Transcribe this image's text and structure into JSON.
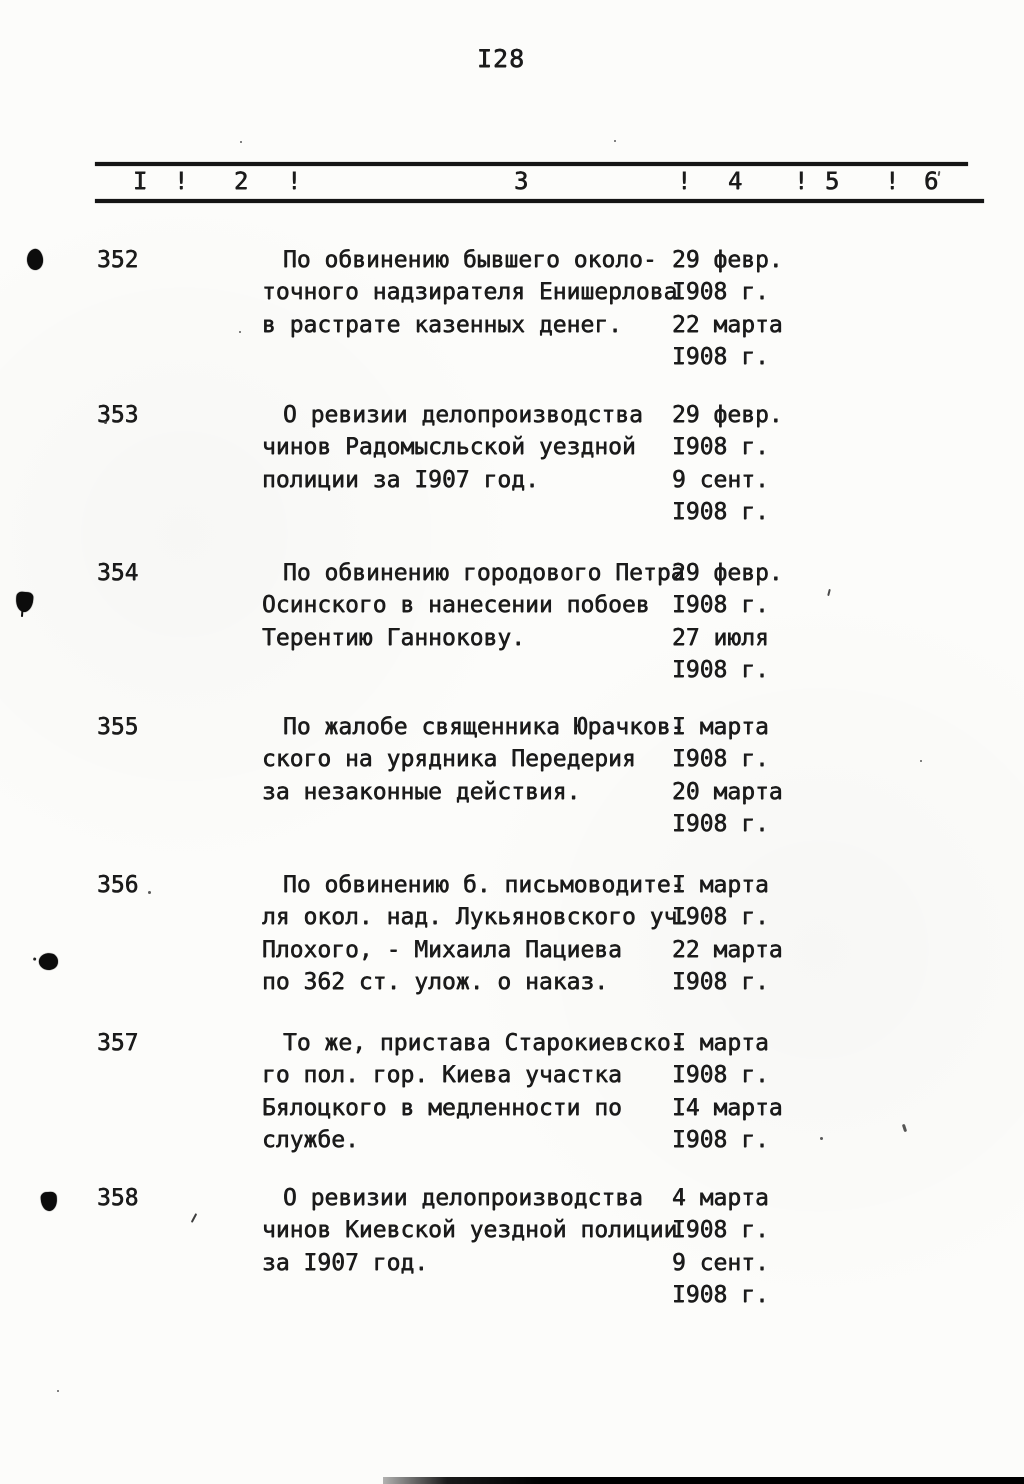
{
  "page": {
    "number": "I28"
  },
  "table": {
    "header_cells": [
      "I",
      "!",
      "2",
      "!",
      "3",
      "!",
      "4",
      "!",
      "5",
      "!",
      "6"
    ]
  },
  "entries": [
    {
      "number": "352",
      "description_lines": [
        "По обвинению бывшего около-",
        "точного надзирателя Енишерлова",
        "в растрате казенных денег."
      ],
      "date_lines": [
        "29 февр.",
        "I908 г.",
        "22 марта",
        "I908 г."
      ]
    },
    {
      "number": "353",
      "description_lines": [
        "О ревизии делопроизводства",
        "чинов Радомысльской уездной",
        "полиции за I907 год."
      ],
      "date_lines": [
        "29 февр.",
        "I908 г.",
        "9 сент.",
        "I908 г."
      ]
    },
    {
      "number": "354",
      "description_lines": [
        "По обвинению городового Петра",
        "Осинского в нанесении побоев",
        "Терентию Ганнокову."
      ],
      "date_lines": [
        "29 февр.",
        "I908 г.",
        "27 июля",
        "I908 г."
      ]
    },
    {
      "number": "355",
      "description_lines": [
        "По жалобе священника Юрачков-",
        "ского на урядника Передерия",
        "за незаконные действия."
      ],
      "date_lines": [
        "I марта",
        "I908 г.",
        "20 марта",
        "I908 г."
      ]
    },
    {
      "number": "356",
      "description_lines": [
        "По обвинению б. письмоводите-",
        "ля окол. над. Лукьяновского уч.",
        "Плохого, - Михаила Пациева",
        "по 362 ст. улож. о наказ."
      ],
      "date_lines": [
        "I марта",
        "I908 г.",
        "22 марта",
        "I908 г."
      ]
    },
    {
      "number": "357",
      "description_lines": [
        "То же, пристава Старокиевско-",
        "го пол. гор. Киева участка",
        "Бялоцкого в медленности по",
        "службе."
      ],
      "date_lines": [
        "I марта",
        "I908 г.",
        "I4 марта",
        "I908 г."
      ]
    },
    {
      "number": "358",
      "description_lines": [
        "О ревизии делопроизводства",
        "чинов Киевской уездной полиции",
        "за I907 год."
      ],
      "date_lines": [
        "4 марта",
        "I908 г.",
        "9 сент.",
        "I908 г."
      ]
    }
  ]
}
